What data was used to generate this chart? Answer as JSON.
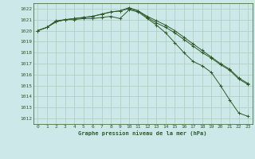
{
  "title": "Graphe pression niveau de la mer (hPa)",
  "background_color": "#cce8e8",
  "grid_color": "#aaccbb",
  "line_color": "#2d5a27",
  "xlim": [
    -0.5,
    23.5
  ],
  "ylim": [
    1011.5,
    1022.5
  ],
  "yticks": [
    1012,
    1013,
    1014,
    1015,
    1016,
    1017,
    1018,
    1019,
    1020,
    1021,
    1022
  ],
  "xticks": [
    0,
    1,
    2,
    3,
    4,
    5,
    6,
    7,
    8,
    9,
    10,
    11,
    12,
    13,
    14,
    15,
    16,
    17,
    18,
    19,
    20,
    21,
    22,
    23
  ],
  "series": [
    [
      1020.0,
      1020.3,
      1020.8,
      1021.0,
      1021.0,
      1021.1,
      1021.1,
      1021.2,
      1021.3,
      1021.1,
      1021.9,
      1021.7,
      1021.1,
      1020.5,
      1019.8,
      1018.9,
      1018.0,
      1017.2,
      1016.8,
      1016.2,
      1015.0,
      1013.7,
      1012.5,
      1012.2
    ],
    [
      1020.0,
      1020.3,
      1020.9,
      1021.0,
      1021.1,
      1021.2,
      1021.3,
      1021.5,
      1021.7,
      1021.8,
      1022.0,
      1021.8,
      1021.3,
      1020.9,
      1020.5,
      1020.0,
      1019.4,
      1018.8,
      1018.2,
      1017.6,
      1017.0,
      1016.5,
      1015.7,
      1015.2
    ],
    [
      1020.0,
      1020.3,
      1020.8,
      1021.0,
      1021.1,
      1021.2,
      1021.3,
      1021.5,
      1021.7,
      1021.8,
      1022.1,
      1021.8,
      1021.2,
      1020.7,
      1020.3,
      1019.8,
      1019.2,
      1018.6,
      1018.0,
      1017.5,
      1016.9,
      1016.4,
      1015.6,
      1015.1
    ]
  ]
}
